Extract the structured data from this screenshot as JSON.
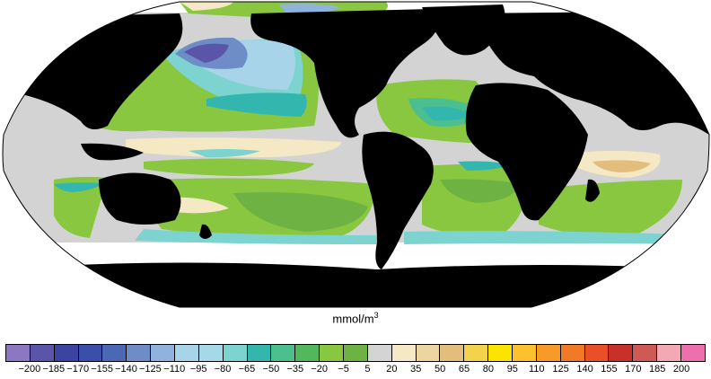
{
  "map": {
    "projection": "Robinson",
    "land_color": "#000000",
    "ocean_background": "#d3d3d3",
    "ice_color": "#ffffff"
  },
  "colorbar": {
    "units_base": "mmol/m",
    "units_exp": "3",
    "ticks": [
      "−200",
      "−185",
      "−170",
      "−155",
      "−140",
      "−125",
      "−110",
      "−95",
      "−80",
      "−65",
      "−50",
      "−35",
      "−20",
      "−5",
      "5",
      "20",
      "35",
      "50",
      "65",
      "80",
      "95",
      "110",
      "125",
      "140",
      "155",
      "170",
      "185",
      "200"
    ],
    "colors": [
      "#8b78c0",
      "#5a55a8",
      "#3b45a0",
      "#3a4fa8",
      "#4a68b3",
      "#6e8cc6",
      "#8fb3dc",
      "#a8d4ea",
      "#a6d9e8",
      "#7cd3cf",
      "#32b6ae",
      "#4cbf8f",
      "#52b85b",
      "#89c740",
      "#6fb244",
      "#d4d4d4",
      "#f4e9c4",
      "#ecd5a1",
      "#e2bd7c",
      "#f2d34b",
      "#fbe500",
      "#fcc12d",
      "#f89a2a",
      "#f27a24",
      "#e9502a",
      "#c8302a",
      "#cf5a55",
      "#f3a9b3",
      "#ee6fae"
    ]
  },
  "icons": {
    "land": "landmass-shape",
    "ice": "sea-ice-shape"
  }
}
